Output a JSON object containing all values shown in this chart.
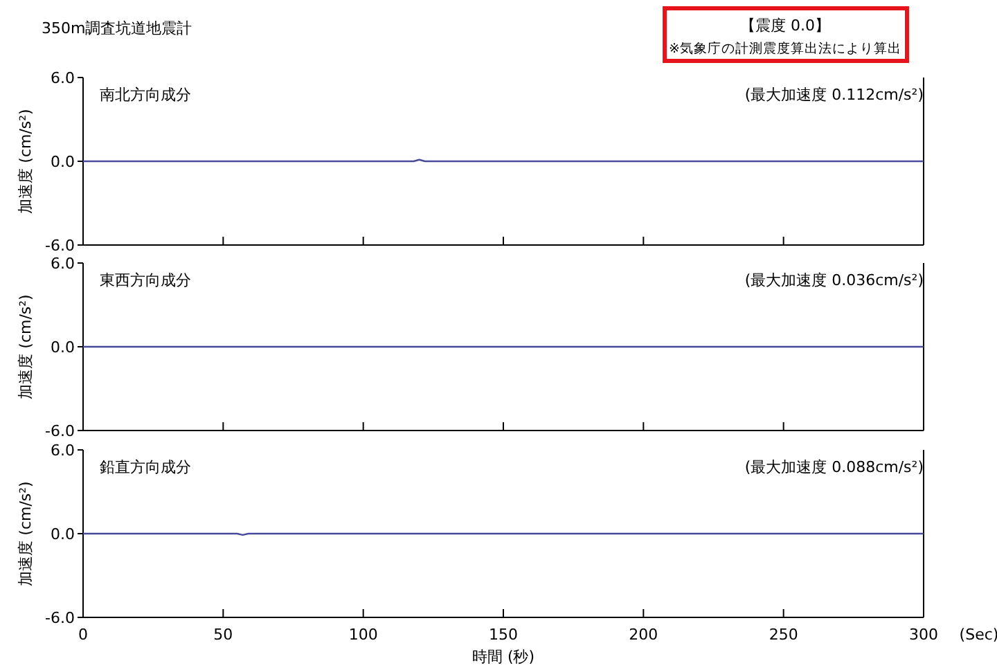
{
  "chart_data": [
    {
      "type": "line",
      "title": "南北方向成分",
      "ylabel": "加速度 (cm/s²)",
      "annotations": [
        "350m調査坑道地震計",
        "【震度 0.0】",
        "※気象庁の計測震度算出法により算出",
        "(最大加速度 0.112cm/s²)"
      ],
      "x": [
        0,
        118,
        120,
        122,
        300
      ],
      "series": [
        {
          "color": "#4a4a9c",
          "values": [
            0,
            0,
            0.11,
            0,
            0
          ]
        }
      ],
      "xlim": [
        0,
        300
      ],
      "xticks": [
        0,
        50,
        100,
        150,
        200,
        250,
        300
      ],
      "ylim": [
        -6,
        6
      ],
      "yticks": [
        {
          "value": 6,
          "label": "6.0"
        },
        {
          "value": 0,
          "label": "0.0"
        },
        {
          "value": -6,
          "label": "-6.0"
        }
      ],
      "tick_labels": "y",
      "grid": false
    },
    {
      "type": "line",
      "title": "東西方向成分",
      "ylabel": "加速度 (cm/s²)",
      "annotations": [
        "(最大加速度 0.036cm/s²)"
      ],
      "x": [
        0,
        300
      ],
      "series": [
        {
          "color": "#4a4a9c",
          "values": [
            0,
            0
          ]
        }
      ],
      "xlim": [
        0,
        300
      ],
      "xticks": [
        0,
        50,
        100,
        150,
        200,
        250,
        300
      ],
      "ylim": [
        -6,
        6
      ],
      "yticks": [
        {
          "value": 6,
          "label": "6.0"
        },
        {
          "value": 0,
          "label": "0.0"
        },
        {
          "value": -6,
          "label": "-6.0"
        }
      ],
      "tick_labels": "y",
      "grid": false
    },
    {
      "type": "line",
      "title": "鉛直方向成分",
      "ylabel": "加速度 (cm/s²)",
      "xlabel": "時間 (秒)",
      "annotations": [
        "(最大加速度 0.088cm/s²)",
        "(Sec)"
      ],
      "x": [
        0,
        55,
        57,
        59,
        300
      ],
      "series": [
        {
          "color": "#4a4a9c",
          "values": [
            0,
            0,
            -0.09,
            0,
            0
          ]
        }
      ],
      "xlim": [
        0,
        300
      ],
      "xticks": [
        0,
        50,
        100,
        150,
        200,
        250,
        300
      ],
      "ylim": [
        -6,
        6
      ],
      "yticks": [
        {
          "value": 6,
          "label": "6.0"
        },
        {
          "value": 0,
          "label": "0.0"
        },
        {
          "value": -6,
          "label": "-6.0"
        }
      ],
      "grid": false
    }
  ]
}
